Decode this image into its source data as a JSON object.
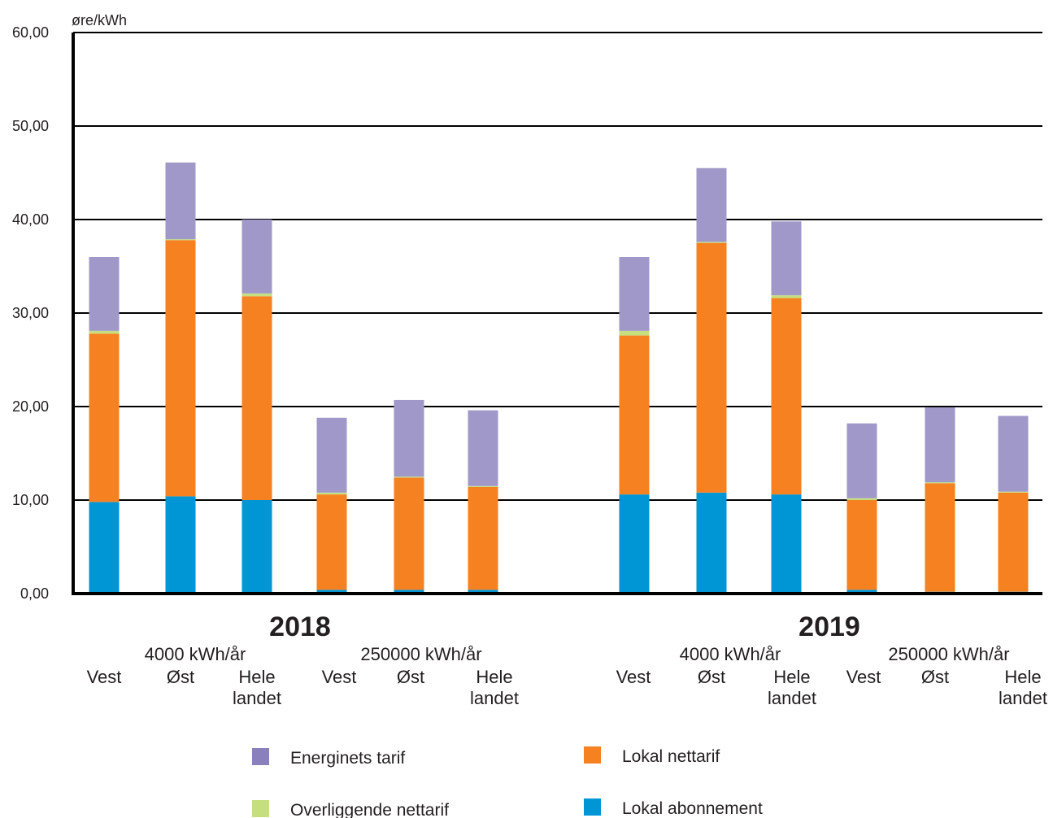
{
  "chart_data": {
    "type": "bar",
    "stacked": true,
    "ylabel": "øre/kWh",
    "ylim": [
      0,
      60
    ],
    "yticks": [
      "0,00",
      "10,00",
      "20,00",
      "30,00",
      "40,00",
      "50,00",
      "60,00"
    ],
    "grid": true,
    "legend_position": "bottom",
    "groups": [
      {
        "year": "2018",
        "subgroups": [
          "4000 kWh/år",
          "250000 kWh/år"
        ]
      },
      {
        "year": "2019",
        "subgroups": [
          "4000 kWh/år",
          "250000 kWh/år"
        ]
      }
    ],
    "categories": [
      [
        "Vest"
      ],
      [
        "Øst"
      ],
      [
        "Hele",
        "landet"
      ],
      [
        "Vest"
      ],
      [
        "Øst"
      ],
      [
        "Hele",
        "landet"
      ],
      [
        "Vest"
      ],
      [
        "Øst"
      ],
      [
        "Hele",
        "landet"
      ],
      [
        "Vest"
      ],
      [
        "Øst"
      ],
      [
        "Hele",
        "landet"
      ]
    ],
    "series": [
      {
        "name": "Lokal abonnement",
        "color": "#0096d6",
        "values": [
          9.8,
          10.4,
          10.0,
          0.4,
          0.4,
          0.4,
          10.6,
          10.8,
          10.6,
          0.4,
          0.2,
          0.2
        ]
      },
      {
        "name": "Lokal nettarif",
        "color": "#f68121",
        "values": [
          18.0,
          27.4,
          21.8,
          10.2,
          12.0,
          11.0,
          17.0,
          26.7,
          21.0,
          9.6,
          11.6,
          10.6
        ]
      },
      {
        "name": "Overliggende nettarif",
        "color": "#c5de7e",
        "values": [
          0.3,
          0.1,
          0.3,
          0.2,
          0.1,
          0.1,
          0.5,
          0.1,
          0.3,
          0.2,
          0.1,
          0.1
        ]
      },
      {
        "name": "Energinets tarif",
        "color": "#9f98c9",
        "values": [
          7.9,
          8.2,
          7.9,
          8.0,
          8.2,
          8.1,
          7.9,
          7.9,
          7.9,
          8.0,
          8.0,
          8.1
        ]
      }
    ],
    "legend": [
      {
        "label": "Energinets tarif",
        "color": "#8a80bb"
      },
      {
        "label": "Lokal nettarif",
        "color": "#f68121"
      },
      {
        "label": "Overliggende nettarif",
        "color": "#c5de7e"
      },
      {
        "label": "Lokal abonnement",
        "color": "#0096d6"
      }
    ]
  }
}
